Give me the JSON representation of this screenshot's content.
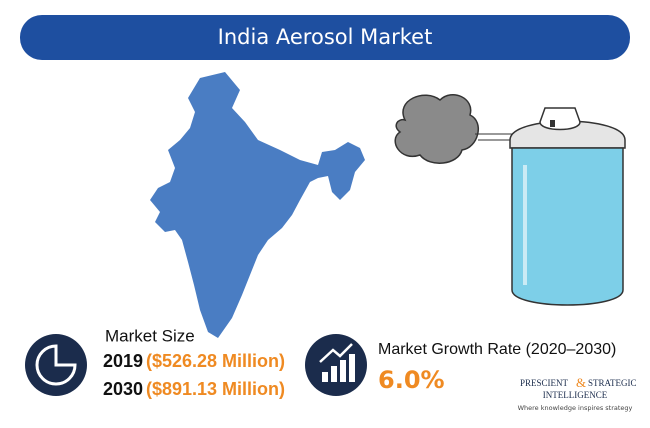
{
  "header": {
    "title": "India Aerosol Market"
  },
  "market_size": {
    "label": "Market Size",
    "rows": [
      {
        "year": "2019",
        "value": "($526.28 Million)"
      },
      {
        "year": "2030",
        "value": "($891.13 Million)"
      }
    ]
  },
  "growth": {
    "label": "Market Growth Rate (2020–2030)",
    "value": "6.0%"
  },
  "logo": {
    "word1": "PRESCIENT",
    "amp": "&",
    "word2": "STRATEGIC",
    "word3": "INTELLIGENCE",
    "tagline": "Where knowledge inspires strategy"
  }
}
